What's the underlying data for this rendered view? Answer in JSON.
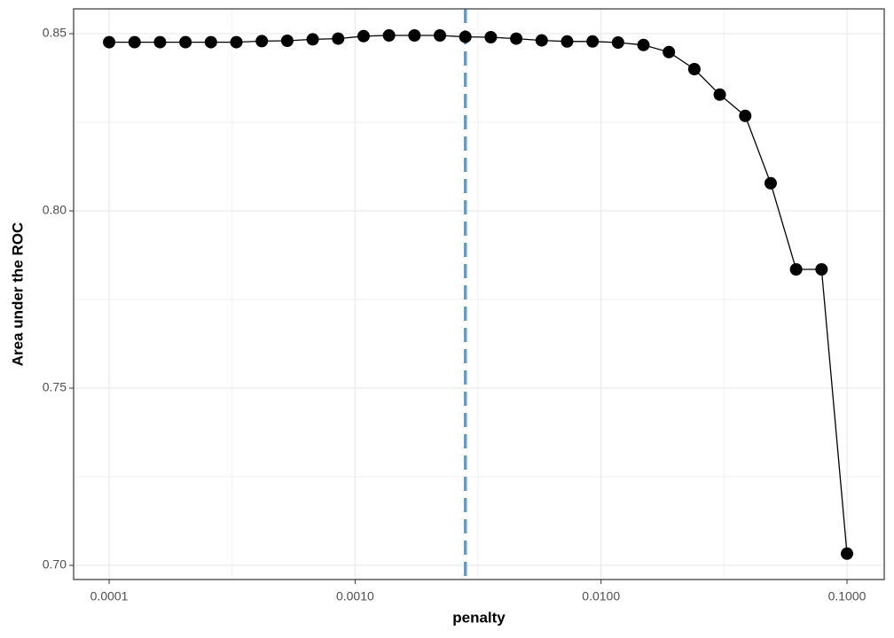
{
  "chart_data": {
    "type": "line",
    "x_label": "penalty",
    "y_label": "Area under the ROC",
    "x": [
      0.0001,
      0.000126896,
      0.000161026,
      0.000204336,
      0.000259294,
      0.000329034,
      0.000417532,
      0.000529832,
      0.000672336,
      0.000853168,
      0.00108264,
      0.00137382,
      0.00174333,
      0.00221222,
      0.00280722,
      0.00356225,
      0.00452035,
      0.00573615,
      0.00727895,
      0.00923671,
      0.011721,
      0.0148735,
      0.0188739,
      0.0239503,
      0.030392,
      0.0385662,
      0.048939,
      0.0621017,
      0.0788046,
      0.1
    ],
    "values": [
      0.8476,
      0.8476,
      0.8476,
      0.8476,
      0.8476,
      0.8476,
      0.8479,
      0.848,
      0.8484,
      0.8486,
      0.8493,
      0.8495,
      0.8495,
      0.8495,
      0.8491,
      0.849,
      0.8486,
      0.8481,
      0.8478,
      0.8478,
      0.8475,
      0.8468,
      0.8448,
      0.84,
      0.8328,
      0.8268,
      0.8078,
      0.7835,
      0.7835,
      0.7033
    ],
    "color": "#000000",
    "vline": 0.00280722,
    "vline_color": "#5a9fd4",
    "x_log": true,
    "xlim": [
      7.17e-05,
      0.1417
    ],
    "xticks": [
      {
        "value": 0.0001,
        "label": "0.0001"
      },
      {
        "value": 0.001,
        "label": "0.0010"
      },
      {
        "value": 0.01,
        "label": "0.0100"
      },
      {
        "value": 0.1,
        "label": "0.1000"
      }
    ],
    "ylim": [
      0.696,
      0.857
    ],
    "yticks": [
      {
        "value": 0.7,
        "label": "0.70"
      },
      0.75,
      {
        "value": 0.8,
        "label": "0.80"
      },
      0.85
    ],
    "grid": true
  }
}
